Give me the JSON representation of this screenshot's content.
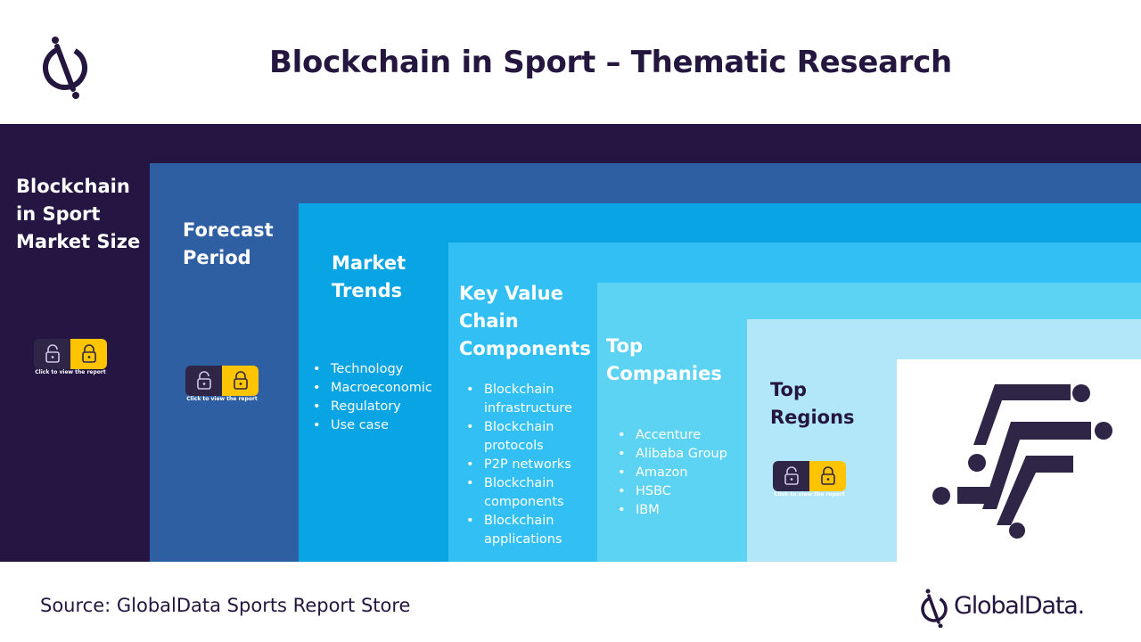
{
  "title": "Blockchain in Sport – Thematic Research",
  "columns": [
    {
      "heading": [
        "Blockchain",
        "in Sport",
        "Market Size"
      ],
      "items": [],
      "lock": true
    },
    {
      "heading": [
        "Forecast",
        "Period"
      ],
      "items": [],
      "lock": true
    },
    {
      "heading": [
        "Market",
        "Trends"
      ],
      "items": [
        "Technology",
        "Macroeconomic",
        "Regulatory",
        "Use case"
      ],
      "lock": false
    },
    {
      "heading": [
        "Key Value",
        "Chain",
        "Components"
      ],
      "items": [
        [
          "Blockchain",
          "infrastructure"
        ],
        [
          "Blockchain",
          "protocols"
        ],
        [
          "P2P networks"
        ],
        [
          "Blockchain",
          "components"
        ],
        [
          "Blockchain",
          "applications"
        ]
      ],
      "lock": false
    },
    {
      "heading": [
        "Top",
        "Companies"
      ],
      "items": [
        "Accenture",
        "Alibaba Group",
        "Amazon",
        "HSBC",
        "IBM"
      ],
      "lock": false
    },
    {
      "heading": [
        "Top",
        "Regions"
      ],
      "items": [],
      "lock": true
    }
  ],
  "lock_caption": "Click to view the report",
  "source": "Source: GlobalData Sports Report Store",
  "brand": "GlobalData.",
  "colors": {
    "dark_navy": "#241542",
    "blue_1": "#2f5fa3",
    "blue_2": "#08a4e4",
    "blue_3": "#32c0f4",
    "blue_4": "#5cd3f3",
    "blue_5": "#b2e7fa",
    "lock_yellow": "#ffc400"
  },
  "icons": [
    "globaldata-logo-icon",
    "unlock-icon",
    "lock-icon",
    "sport-blockchain-icon"
  ]
}
